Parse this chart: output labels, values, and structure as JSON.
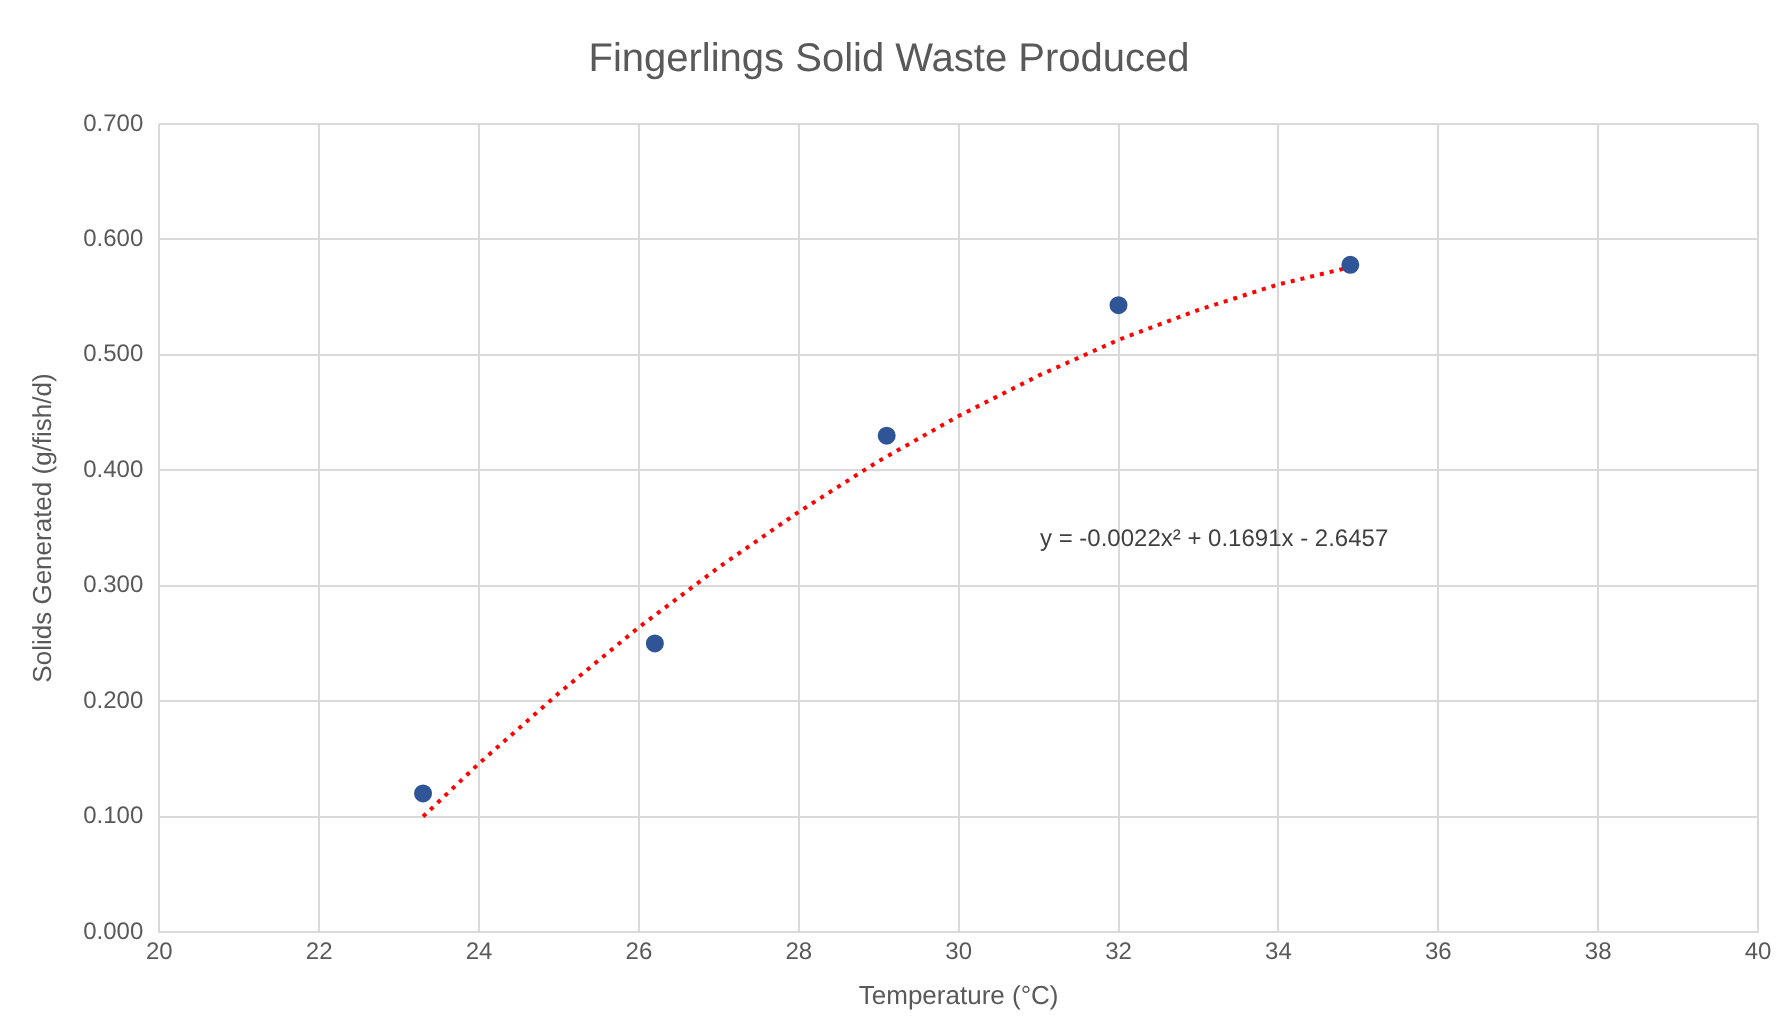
{
  "chart_data": {
    "type": "scatter",
    "title": "Fingerlings Solid Waste Produced",
    "xlabel": "Temperature (°C)",
    "ylabel": "Solids Generated (g/fish/d)",
    "series": [
      {
        "type": "scatter",
        "color": "#2f5597",
        "marker": "circle",
        "x": [
          23.3,
          26.2,
          29.1,
          32.0,
          34.9
        ],
        "values": [
          0.12,
          0.25,
          0.43,
          0.543,
          0.578
        ]
      },
      {
        "type": "line",
        "color": "#ff0000",
        "marker": "none",
        "line_style": "dotted",
        "x": [
          23.3,
          24,
          25,
          26,
          27,
          28,
          29,
          30,
          31,
          32,
          33,
          34,
          34.9
        ],
        "values": [
          0.1,
          0.146,
          0.207,
          0.264,
          0.316,
          0.364,
          0.408,
          0.447,
          0.482,
          0.513,
          0.539,
          0.561,
          0.576
        ]
      }
    ],
    "xlim": [
      20,
      40
    ],
    "xticks": [
      20,
      22,
      24,
      26,
      28,
      30,
      32,
      34,
      36,
      38,
      40
    ],
    "ylim": [
      0,
      0.7
    ],
    "yticks": [
      {
        "value": 0,
        "label": "0.000"
      },
      {
        "value": 0.1,
        "label": "0.100"
      },
      {
        "value": 0.2,
        "label": "0.200"
      },
      {
        "value": 0.3,
        "label": "0.300"
      },
      {
        "value": 0.4,
        "label": "0.400"
      },
      {
        "value": 0.5,
        "label": "0.500"
      },
      {
        "value": 0.6,
        "label": "0.600"
      },
      {
        "value": 0.7,
        "label": "0.700"
      }
    ],
    "grid": true,
    "legend": false,
    "annotations": [
      "y = -0.0022x² + 0.1691x - 2.6457"
    ]
  }
}
